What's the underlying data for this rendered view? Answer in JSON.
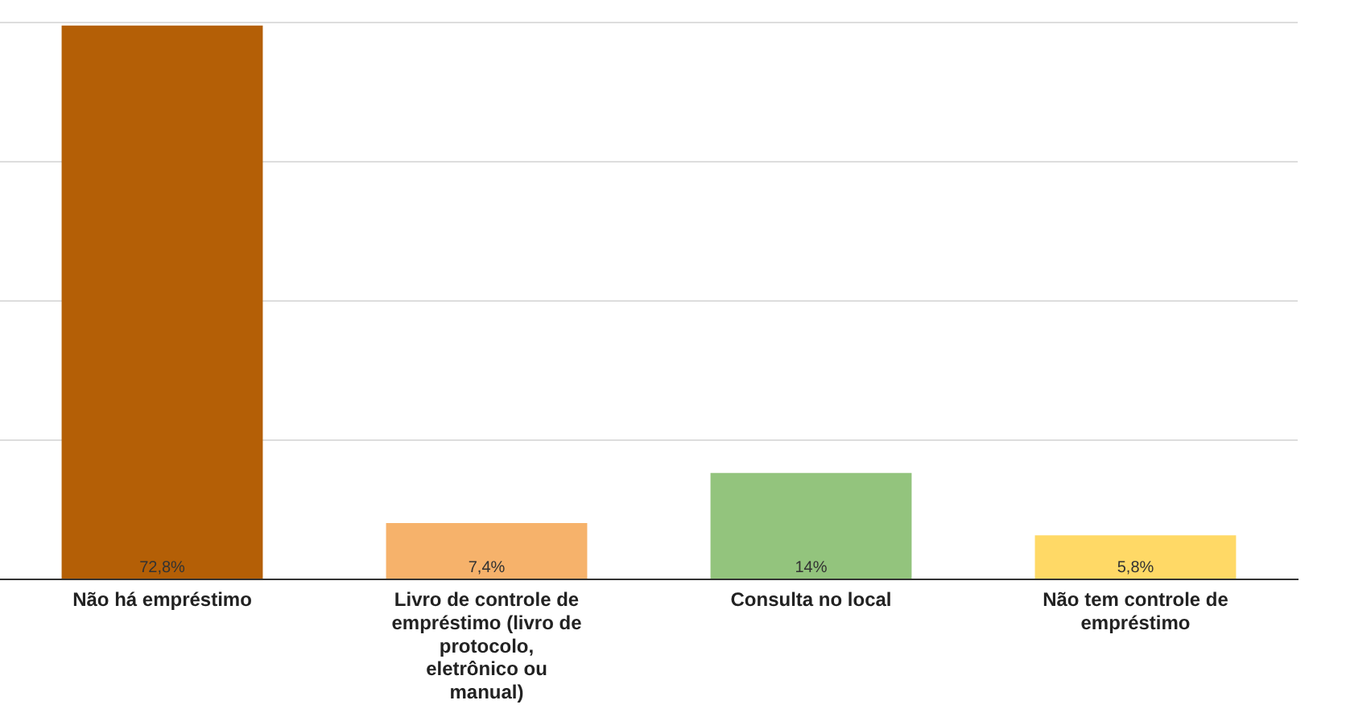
{
  "chart_data": {
    "type": "bar",
    "categories": [
      "Não há empréstimo",
      "Livro de controle de empréstimo (livro de protocolo, eletrônico ou manual)",
      "Consulta no local",
      "Não tem controle de empréstimo"
    ],
    "values": [
      72.8,
      7.4,
      14,
      5.8
    ],
    "colors": [
      "#b45f06",
      "#f6b26b",
      "#93c47d",
      "#ffd966"
    ],
    "value_labels": [
      "72,8%",
      "7,4%",
      "14%",
      "5,8%"
    ],
    "ylim": [
      0,
      73.2
    ],
    "yticks": [
      {
        "value": 0,
        "label": null
      },
      {
        "value": 18.3,
        "label": null
      },
      {
        "value": 36.6,
        "label": null
      },
      {
        "value": 54.9,
        "label": null
      },
      {
        "value": 73.2,
        "label": null
      }
    ],
    "grid": "y",
    "tick_labels": "x",
    "legend": false
  }
}
